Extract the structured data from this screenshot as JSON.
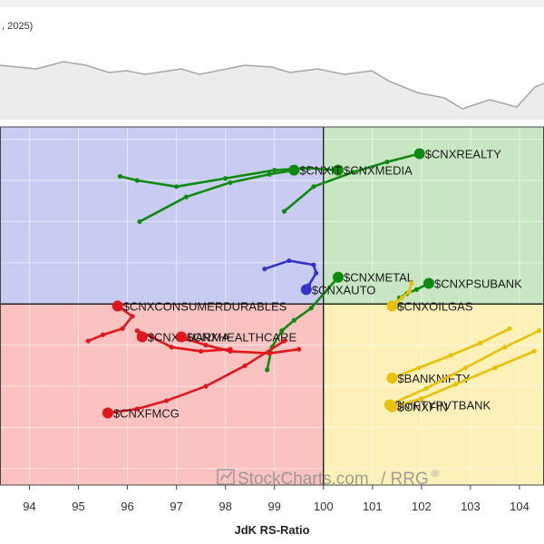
{
  "header": {
    "date_fragment": ", 2025)"
  },
  "watermark": {
    "brand": "StockCharts.com",
    "suffix": "/ RRG",
    "mark": "®"
  },
  "colors": {
    "leading": "#c8e6c3",
    "weakening": "#fdf0b8",
    "lagging": "#fbc2c2",
    "improving": "#c8ccf3",
    "green": "#0e8a0e",
    "blue": "#3333cc",
    "red": "#e0161a",
    "yellow": "#e8c200"
  },
  "chart_data": {
    "type": "scatter",
    "xlabel": "JdK RS-Ratio",
    "ylabel": "",
    "xlim": [
      93.4,
      104.5
    ],
    "ylim": [
      95.6,
      104.3
    ],
    "center": [
      100,
      100
    ],
    "xticks": [
      94,
      95,
      96,
      97,
      98,
      99,
      100,
      101,
      102,
      103,
      104
    ],
    "series": [
      {
        "name": "$CNXREALTY",
        "color": "green",
        "x": [
          99.2,
          99.8,
          100.6,
          101.3,
          101.96
        ],
        "y": [
          102.25,
          102.85,
          103.2,
          103.45,
          103.65
        ]
      },
      {
        "name": "$CNXMEDIA",
        "color": "green",
        "x": [
          95.85,
          96.2,
          97.0,
          98.0,
          99.0,
          99.7,
          100.3
        ],
        "y": [
          103.1,
          103.0,
          102.85,
          103.05,
          103.25,
          103.3,
          103.25
        ]
      },
      {
        "name": "$CNXIT",
        "color": "green",
        "x": [
          96.25,
          97.2,
          98.1,
          98.9,
          99.4
        ],
        "y": [
          102.0,
          102.6,
          102.95,
          103.15,
          103.25
        ]
      },
      {
        "name": "$CNXMETAL",
        "color": "green",
        "x": [
          98.85,
          98.95,
          99.15,
          99.4,
          99.75,
          100.3
        ],
        "y": [
          98.4,
          98.95,
          99.35,
          99.6,
          99.9,
          100.65
        ]
      },
      {
        "name": "$CNXPSUBANK",
        "color": "green",
        "x": [
          101.5,
          101.55,
          101.7,
          101.9,
          102.15
        ],
        "y": [
          99.95,
          100.15,
          100.25,
          100.35,
          100.5
        ]
      },
      {
        "name": "$CNXAUTO",
        "color": "blue",
        "x": [
          98.8,
          99.3,
          99.8,
          99.85,
          99.7,
          99.65
        ],
        "y": [
          100.85,
          101.05,
          100.95,
          100.75,
          100.45,
          100.35
        ]
      },
      {
        "name": "$CNXCONSUMERDURABLES",
        "color": "red",
        "x": [
          95.2,
          95.5,
          95.9,
          96.1,
          95.8
        ],
        "y": [
          99.1,
          99.25,
          99.4,
          99.7,
          99.95
        ]
      },
      {
        "name": "$CNXPHARMA",
        "color": "red",
        "x": [
          98.1,
          97.5,
          96.9,
          96.5,
          96.2,
          96.3
        ],
        "y": [
          98.9,
          98.85,
          98.95,
          99.2,
          99.35,
          99.2
        ]
      },
      {
        "name": "$CNXHEALTHCARE",
        "color": "red",
        "x": [
          99.5,
          98.9,
          98.1,
          97.6,
          97.2,
          97.1
        ],
        "y": [
          98.9,
          98.8,
          98.85,
          99.0,
          99.15,
          99.2
        ]
      },
      {
        "name": "$CNXFMCG",
        "color": "red",
        "x": [
          99.2,
          98.4,
          97.6,
          96.8,
          96.2,
          95.6
        ],
        "y": [
          99.1,
          98.5,
          98.0,
          97.65,
          97.45,
          97.35
        ]
      },
      {
        "name": "$CNXOILGAS",
        "color": "yellow",
        "x": [
          101.8,
          101.75,
          101.6,
          101.5,
          101.4
        ],
        "y": [
          100.5,
          100.3,
          100.15,
          100.05,
          99.95
        ]
      },
      {
        "name": "$BANKNIFTY",
        "color": "yellow",
        "x": [
          103.8,
          103.2,
          102.6,
          101.95,
          101.4
        ],
        "y": [
          99.4,
          99.05,
          98.75,
          98.45,
          98.2
        ]
      },
      {
        "name": "$NIFTYPVTBANK",
        "color": "yellow",
        "x": [
          104.4,
          103.7,
          102.9,
          102.1,
          101.35
        ],
        "y": [
          99.35,
          98.95,
          98.45,
          97.95,
          97.55
        ]
      },
      {
        "name": "$CNXFIN",
        "color": "yellow",
        "x": [
          104.3,
          103.5,
          102.7,
          102.0,
          101.4
        ],
        "y": [
          98.85,
          98.45,
          98.05,
          97.7,
          97.5
        ]
      }
    ],
    "label_text_color": "#1a1a1a"
  }
}
